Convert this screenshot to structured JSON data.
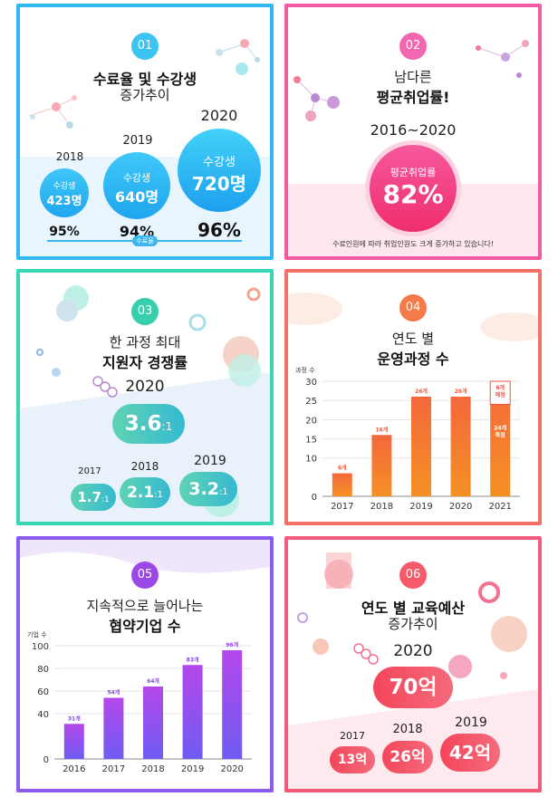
{
  "colors": {
    "blue": "#2fb9f0",
    "pink": "#f25aa6",
    "teal": "#38d6b7",
    "orange": "#f4706b",
    "purple": "#8a5cf0",
    "red": "#f45a7a"
  },
  "p1": {
    "num": "01",
    "title1": "수료율 및 수강생",
    "title2": "증가추이",
    "items": [
      {
        "year": "2018",
        "label": "수강생",
        "count": "423명",
        "rate": "95%"
      },
      {
        "year": "2019",
        "label": "수강생",
        "count": "640명",
        "rate": "94%"
      },
      {
        "year": "2020",
        "label": "수강생",
        "count": "720명",
        "rate": "96%"
      }
    ],
    "tag": "수료율"
  },
  "p2": {
    "num": "02",
    "title1": "남다른",
    "title2": "평균취업률!",
    "period": "2016~2020",
    "circle_label": "평균취업률",
    "circle_value": "82%",
    "note": "수료인원에 따라 취업인원도 크게 증가하고 있습니다!"
  },
  "p3": {
    "num": "03",
    "title1": "한 과정 최대",
    "title2": "지원자 경쟁률",
    "main": {
      "year": "2020",
      "value": "3.6",
      "suffix": ":1"
    },
    "items": [
      {
        "year": "2017",
        "value": "1.7",
        "suffix": ":1"
      },
      {
        "year": "2018",
        "value": "2.1",
        "suffix": ":1"
      },
      {
        "year": "2019",
        "value": "3.2",
        "suffix": ":1"
      }
    ]
  },
  "p4": {
    "num": "04",
    "title1": "연도 별",
    "title2": "운영과정 수",
    "unit": "과정 수"
  },
  "p5": {
    "num": "05",
    "title1": "지속적으로 늘어나는",
    "title2": "협약기업 수",
    "unit": "기업 수"
  },
  "p6": {
    "num": "06",
    "title1": "연도 별 교육예산",
    "title2": "증가추이",
    "main": {
      "year": "2020",
      "value": "70억"
    },
    "items": [
      {
        "year": "2017",
        "value": "13억"
      },
      {
        "year": "2018",
        "value": "26억"
      },
      {
        "year": "2019",
        "value": "42억"
      }
    ]
  },
  "chart_data": [
    {
      "type": "bar",
      "title": "운영과정 수",
      "ylabel": "과정 수",
      "categories": [
        "2017",
        "2018",
        "2019",
        "2020",
        "2021"
      ],
      "values": [
        6,
        16,
        26,
        26,
        30
      ],
      "labels": [
        "6개",
        "16개",
        "26개",
        "26개",
        "24개 확정"
      ],
      "stack_top": {
        "value": 6,
        "label": "6개 예정"
      },
      "ylim": [
        0,
        30
      ],
      "yticks": [
        0,
        10,
        15,
        20,
        25,
        30
      ]
    },
    {
      "type": "bar",
      "title": "협약기업 수",
      "ylabel": "기업 수",
      "categories": [
        "2016",
        "2017",
        "2018",
        "2019",
        "2020"
      ],
      "values": [
        31,
        54,
        64,
        83,
        96
      ],
      "labels": [
        "31개",
        "54개",
        "64개",
        "83개",
        "96개"
      ],
      "ylim": [
        0,
        100
      ],
      "yticks": [
        0,
        40,
        60,
        80,
        100
      ]
    }
  ]
}
